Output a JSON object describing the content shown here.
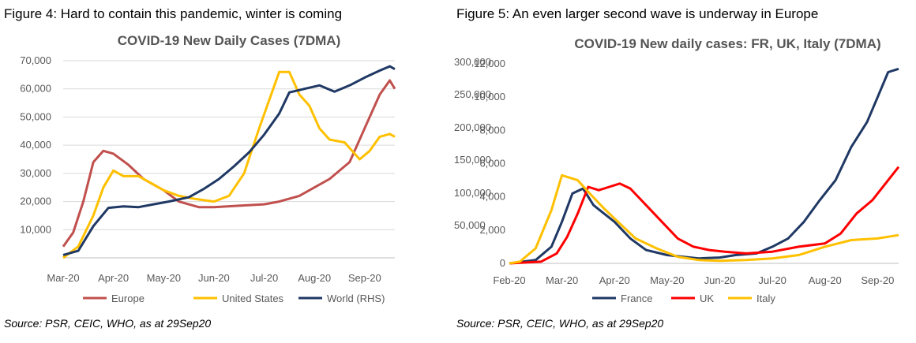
{
  "fig4": {
    "caption": "Figure 4: Hard to contain this pandemic, winter is coming",
    "source": "Source: PSR, CEIC, WHO, as at 29Sep20"
  },
  "fig5": {
    "caption": "Figure 5: An even larger second wave is underway in Europe",
    "source": "Source: PSR, CEIC, WHO, as at 29Sep20"
  },
  "colors": {
    "europe": "#c0504d",
    "us": "#ffc000",
    "world": "#1f3864",
    "france": "#1f3864",
    "uk": "#ff0000",
    "italy": "#ffc000"
  },
  "chart_data": [
    {
      "type": "line",
      "title": "COVID-19 New Daily Cases (7DMA)",
      "x_ticks": [
        "Mar-20",
        "Apr-20",
        "May-20",
        "Jun-20",
        "Jul-20",
        "Aug-20",
        "Sep-20"
      ],
      "x": [
        "Mar-20",
        "Mar-20",
        "Mar-20",
        "Apr-20",
        "Apr-20",
        "Apr-20",
        "May-20",
        "May-20",
        "May-20",
        "Jun-20",
        "Jun-20",
        "Jun-20",
        "Jul-20",
        "Jul-20",
        "Jul-20",
        "Aug-20",
        "Aug-20",
        "Aug-20",
        "Sep-20",
        "Sep-20",
        "Sep-20"
      ],
      "x_pos": [
        0,
        0.33,
        0.67,
        1,
        1.33,
        1.67,
        2,
        2.33,
        2.67,
        3,
        3.33,
        3.67,
        4,
        4.33,
        4.67,
        5,
        5.33,
        5.67,
        6,
        6.33,
        6.6
      ],
      "y_left_ticks": [
        "10,000",
        "20,000",
        "30,000",
        "40,000",
        "50,000",
        "60,000",
        "70,000"
      ],
      "y_left_lim": [
        0,
        70000
      ],
      "y_right_lim": [
        0,
        280000
      ],
      "legend_position": "bottom",
      "series": [
        {
          "name": "Europe",
          "axis": "left",
          "points": [
            [
              0,
              4000
            ],
            [
              0.2,
              9000
            ],
            [
              0.4,
              20000
            ],
            [
              0.6,
              34000
            ],
            [
              0.8,
              38000
            ],
            [
              1.0,
              37000
            ],
            [
              1.3,
              33000
            ],
            [
              1.6,
              28000
            ],
            [
              2.0,
              24000
            ],
            [
              2.3,
              20000
            ],
            [
              2.7,
              18000
            ],
            [
              3.0,
              18000
            ],
            [
              3.5,
              18500
            ],
            [
              4.0,
              19000
            ],
            [
              4.3,
              20000
            ],
            [
              4.7,
              22000
            ],
            [
              5.0,
              25000
            ],
            [
              5.3,
              28000
            ],
            [
              5.7,
              34000
            ],
            [
              6.0,
              46000
            ],
            [
              6.3,
              58000
            ],
            [
              6.5,
              63000
            ],
            [
              6.6,
              60000
            ]
          ]
        },
        {
          "name": "United States",
          "axis": "left",
          "points": [
            [
              0,
              0
            ],
            [
              0.3,
              4000
            ],
            [
              0.6,
              15000
            ],
            [
              0.8,
              25000
            ],
            [
              1.0,
              31000
            ],
            [
              1.2,
              29000
            ],
            [
              1.5,
              29000
            ],
            [
              1.8,
              26000
            ],
            [
              2.0,
              24000
            ],
            [
              2.3,
              22000
            ],
            [
              2.6,
              21000
            ],
            [
              3.0,
              20000
            ],
            [
              3.3,
              22000
            ],
            [
              3.6,
              30000
            ],
            [
              3.9,
              46000
            ],
            [
              4.1,
              56000
            ],
            [
              4.3,
              66000
            ],
            [
              4.5,
              66000
            ],
            [
              4.7,
              58000
            ],
            [
              4.9,
              54000
            ],
            [
              5.1,
              46000
            ],
            [
              5.3,
              42000
            ],
            [
              5.6,
              41000
            ],
            [
              5.9,
              35000
            ],
            [
              6.1,
              38000
            ],
            [
              6.3,
              43000
            ],
            [
              6.5,
              44000
            ],
            [
              6.6,
              43000
            ]
          ]
        },
        {
          "name": "World (RHS)",
          "axis": "right",
          "points": [
            [
              0,
              4000
            ],
            [
              0.3,
              10000
            ],
            [
              0.6,
              45000
            ],
            [
              0.9,
              71000
            ],
            [
              1.2,
              73000
            ],
            [
              1.5,
              72000
            ],
            [
              1.8,
              76000
            ],
            [
              2.1,
              80000
            ],
            [
              2.5,
              86000
            ],
            [
              2.8,
              98000
            ],
            [
              3.1,
              112000
            ],
            [
              3.4,
              130000
            ],
            [
              3.7,
              150000
            ],
            [
              4.0,
              175000
            ],
            [
              4.3,
              205000
            ],
            [
              4.5,
              235000
            ],
            [
              4.8,
              240000
            ],
            [
              5.1,
              245000
            ],
            [
              5.4,
              236000
            ],
            [
              5.7,
              245000
            ],
            [
              6.0,
              256000
            ],
            [
              6.3,
              266000
            ],
            [
              6.5,
              272000
            ],
            [
              6.6,
              268000
            ]
          ]
        }
      ]
    },
    {
      "type": "line",
      "title": "COVID-19 New daily cases: FR, UK, Italy (7DMA)",
      "x_ticks": [
        "Feb-20",
        "Mar-20",
        "Apr-20",
        "May-20",
        "Jun-20",
        "Jul-20",
        "Aug-20",
        "Sep-20"
      ],
      "y_left_ticks": [
        "0",
        "50,000",
        "100,000",
        "150,000",
        "200,000",
        "250,000",
        "300,000"
      ],
      "y_right_ticks": [
        "0",
        "2,000",
        "4,000",
        "6,000",
        "8,000",
        "10,000",
        "12,000"
      ],
      "y_right_lim": [
        0,
        12000
      ],
      "legend_position": "bottom",
      "series": [
        {
          "name": "France",
          "axis": "right",
          "points": [
            [
              0,
              0
            ],
            [
              0.5,
              200
            ],
            [
              0.8,
              1000
            ],
            [
              1.0,
              2500
            ],
            [
              1.2,
              4200
            ],
            [
              1.4,
              4500
            ],
            [
              1.6,
              3500
            ],
            [
              1.8,
              3000
            ],
            [
              2.0,
              2500
            ],
            [
              2.3,
              1500
            ],
            [
              2.6,
              800
            ],
            [
              3.0,
              500
            ],
            [
              3.3,
              400
            ],
            [
              3.6,
              300
            ],
            [
              4.0,
              350
            ],
            [
              4.3,
              500
            ],
            [
              4.7,
              600
            ],
            [
              5.0,
              1000
            ],
            [
              5.3,
              1500
            ],
            [
              5.6,
              2500
            ],
            [
              5.9,
              3800
            ],
            [
              6.2,
              5000
            ],
            [
              6.5,
              7000
            ],
            [
              6.8,
              8500
            ],
            [
              7.0,
              10000
            ],
            [
              7.2,
              11500
            ],
            [
              7.4,
              11700
            ]
          ]
        },
        {
          "name": "UK",
          "axis": "right",
          "points": [
            [
              0,
              0
            ],
            [
              0.6,
              100
            ],
            [
              0.9,
              600
            ],
            [
              1.1,
              1600
            ],
            [
              1.3,
              3000
            ],
            [
              1.5,
              4600
            ],
            [
              1.7,
              4400
            ],
            [
              1.9,
              4600
            ],
            [
              2.1,
              4800
            ],
            [
              2.3,
              4500
            ],
            [
              2.6,
              3500
            ],
            [
              2.9,
              2500
            ],
            [
              3.2,
              1500
            ],
            [
              3.5,
              1000
            ],
            [
              3.8,
              800
            ],
            [
              4.1,
              700
            ],
            [
              4.5,
              600
            ],
            [
              5.0,
              700
            ],
            [
              5.5,
              1000
            ],
            [
              6.0,
              1200
            ],
            [
              6.3,
              1800
            ],
            [
              6.6,
              3000
            ],
            [
              6.9,
              3800
            ],
            [
              7.2,
              5000
            ],
            [
              7.4,
              5800
            ]
          ]
        },
        {
          "name": "Italy",
          "axis": "right",
          "points": [
            [
              0,
              0
            ],
            [
              0.2,
              100
            ],
            [
              0.5,
              900
            ],
            [
              0.8,
              3200
            ],
            [
              1.0,
              5300
            ],
            [
              1.3,
              5000
            ],
            [
              1.5,
              4300
            ],
            [
              1.8,
              3300
            ],
            [
              2.1,
              2400
            ],
            [
              2.4,
              1500
            ],
            [
              2.8,
              900
            ],
            [
              3.2,
              400
            ],
            [
              3.6,
              200
            ],
            [
              4.0,
              150
            ],
            [
              4.5,
              200
            ],
            [
              5.0,
              300
            ],
            [
              5.5,
              500
            ],
            [
              6.0,
              1000
            ],
            [
              6.5,
              1400
            ],
            [
              7.0,
              1500
            ],
            [
              7.4,
              1700
            ]
          ]
        }
      ]
    }
  ]
}
